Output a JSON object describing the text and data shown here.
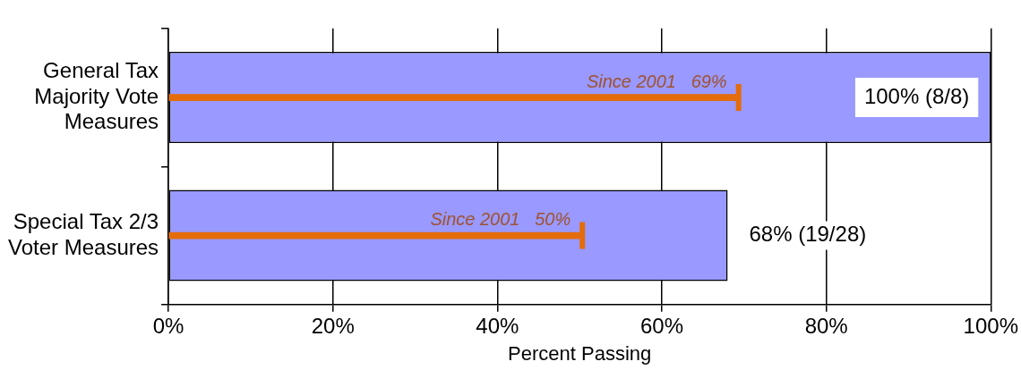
{
  "chart_data": {
    "type": "bar",
    "orientation": "horizontal",
    "xlabel": "Percent Passing",
    "categories": [
      "General Tax Majority Vote Measures",
      "Special Tax 2/3 Voter Measures"
    ],
    "series": [
      {
        "color": "#9999ff",
        "values": [
          100,
          68
        ],
        "value_labels": [
          "100% (8/8)",
          "68% (19/28)"
        ]
      },
      {
        "color": "#e46c0a",
        "values": [
          69,
          50
        ],
        "value_labels": [
          "Since 2001   69%",
          "Since 2001   50%"
        ]
      }
    ],
    "xlim": [
      0,
      100
    ],
    "xticks": [
      {
        "value": 0,
        "label": "0%"
      },
      {
        "value": 20,
        "label": "20%"
      },
      {
        "value": 40,
        "label": "40%"
      },
      {
        "value": 60,
        "label": "60%"
      },
      {
        "value": 80,
        "label": "80%"
      },
      {
        "value": 100,
        "label": "100%"
      }
    ],
    "grid": "x",
    "legend": false
  }
}
